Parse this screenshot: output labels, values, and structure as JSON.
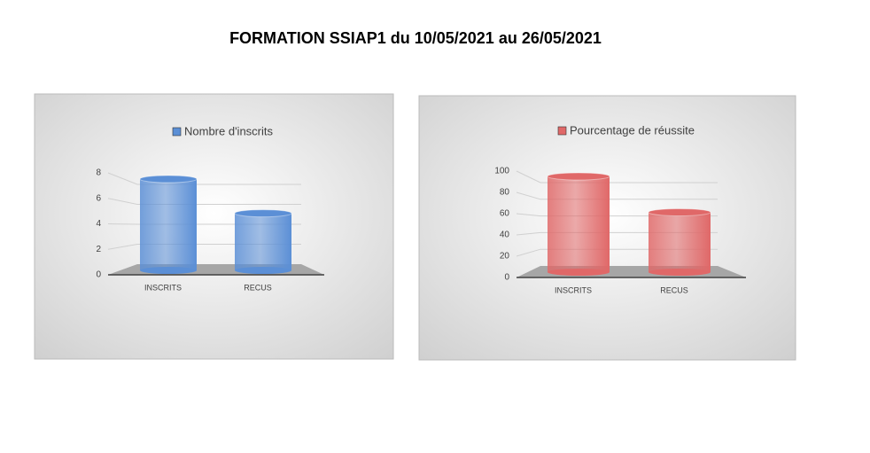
{
  "title": "FORMATION SSIAP1 du 10/05/2021 au 26/05/2021",
  "chart_data": [
    {
      "type": "bar",
      "categories": [
        "INSCRITS",
        "RECUS"
      ],
      "series": [
        {
          "name": "Nombre d'inscrits",
          "color": "#5b8fd6",
          "values": [
            8,
            5
          ]
        }
      ],
      "ylim": [
        0,
        8
      ],
      "yticks": [
        0,
        2,
        4,
        6,
        8
      ],
      "grid": true
    },
    {
      "type": "bar",
      "categories": [
        "INSCRITS",
        "RECUS"
      ],
      "series": [
        {
          "name": "Pourcentage de réussite",
          "color": "#e06868",
          "values": [
            100,
            62.5
          ]
        }
      ],
      "ylim": [
        0,
        100
      ],
      "yticks": [
        0,
        20,
        40,
        60,
        80,
        100
      ],
      "grid": true
    }
  ]
}
